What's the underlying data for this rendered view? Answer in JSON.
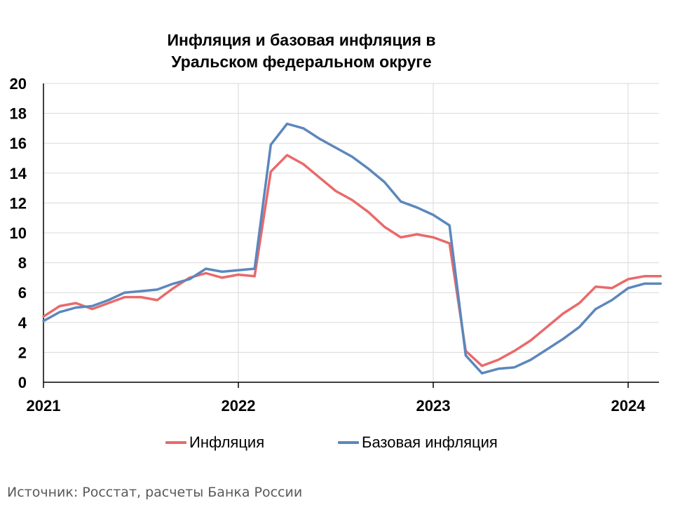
{
  "chart_data": {
    "type": "line",
    "title_lines": [
      "Инфляция и базовая инфляция в",
      "Уральском федеральном округе"
    ],
    "source": "Источник: Росстат, расчеты Банка России",
    "ylim": [
      0,
      20
    ],
    "yticks": [
      "0",
      "2",
      "4",
      "6",
      "8",
      "10",
      "12",
      "14",
      "16",
      "18",
      "20"
    ],
    "x_range": [
      "2021-01",
      "2024-03"
    ],
    "xticks": [
      "2021",
      "2022",
      "2023",
      "2024"
    ],
    "grid": true,
    "legend": "bottom",
    "x": [
      "2021-01",
      "2021-02",
      "2021-03",
      "2021-04",
      "2021-05",
      "2021-06",
      "2021-07",
      "2021-08",
      "2021-09",
      "2021-10",
      "2021-11",
      "2021-12",
      "2022-01",
      "2022-02",
      "2022-03",
      "2022-04",
      "2022-05",
      "2022-06",
      "2022-07",
      "2022-08",
      "2022-09",
      "2022-10",
      "2022-11",
      "2022-12",
      "2023-01",
      "2023-02",
      "2023-03",
      "2023-04",
      "2023-05",
      "2023-06",
      "2023-07",
      "2023-08",
      "2023-09",
      "2023-10",
      "2023-11",
      "2023-12",
      "2024-01",
      "2024-02",
      "2024-03"
    ],
    "series": [
      {
        "name": "Инфляция",
        "color": "#E86A6A",
        "values": [
          4.4,
          5.1,
          5.3,
          4.9,
          5.3,
          5.7,
          5.7,
          5.5,
          6.3,
          7.0,
          7.3,
          7.0,
          7.2,
          7.1,
          14.1,
          15.2,
          14.6,
          13.7,
          12.8,
          12.2,
          11.4,
          10.4,
          9.7,
          9.9,
          9.7,
          9.3,
          2.1,
          1.1,
          1.5,
          2.1,
          2.8,
          3.7,
          4.6,
          5.3,
          6.4,
          6.3,
          6.9,
          7.1,
          7.1
        ]
      },
      {
        "name": "Базовая инфляция",
        "color": "#5B87BC",
        "values": [
          4.1,
          4.7,
          5.0,
          5.1,
          5.5,
          6.0,
          6.1,
          6.2,
          6.6,
          6.9,
          7.6,
          7.4,
          7.5,
          7.6,
          15.9,
          17.3,
          17.0,
          16.3,
          15.7,
          15.1,
          14.3,
          13.4,
          12.1,
          11.7,
          11.2,
          10.5,
          1.8,
          0.6,
          0.9,
          1.0,
          1.5,
          2.2,
          2.9,
          3.7,
          4.9,
          5.5,
          6.3,
          6.6,
          6.6
        ]
      }
    ]
  }
}
